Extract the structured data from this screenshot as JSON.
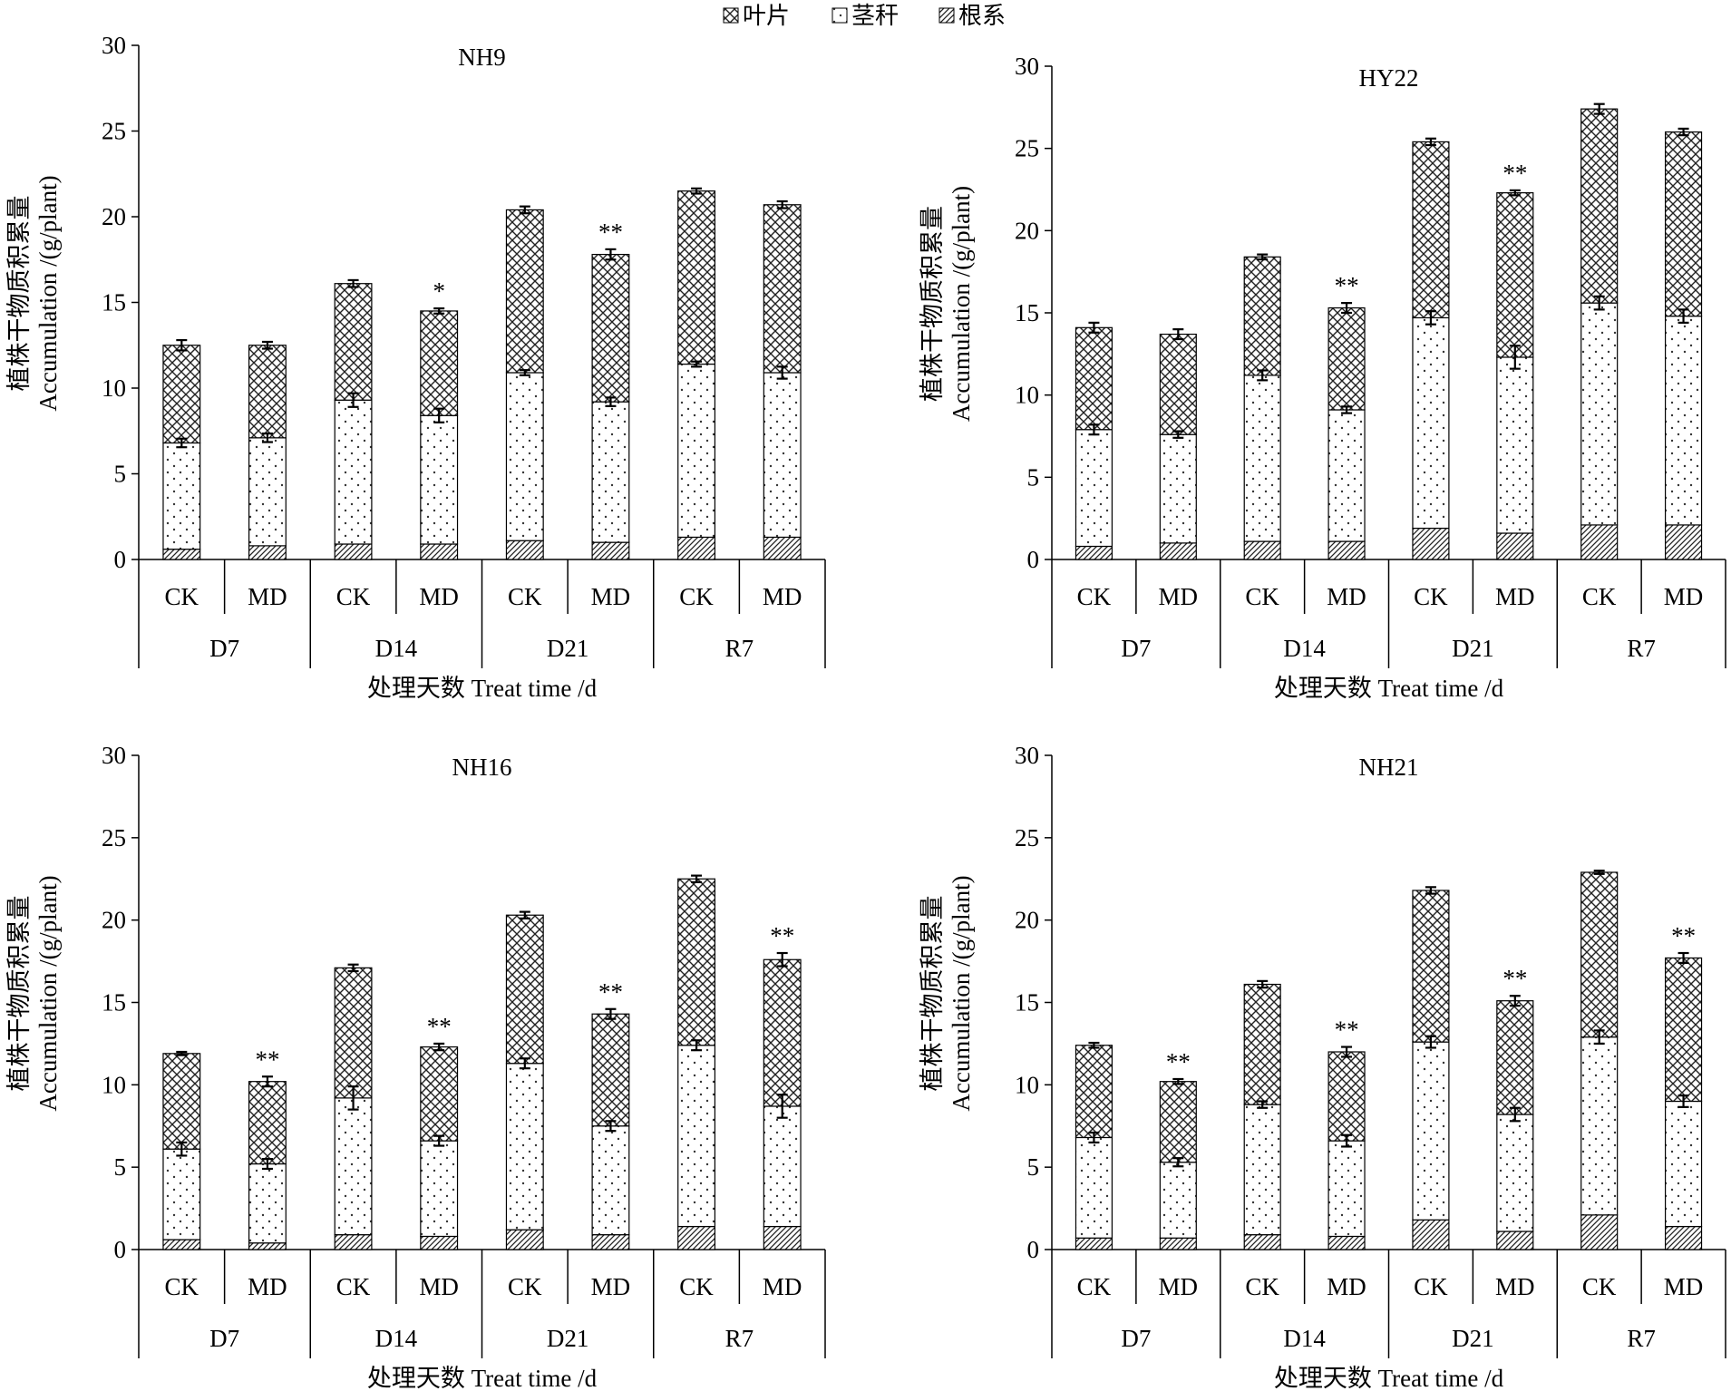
{
  "legend": {
    "items": [
      {
        "key": "leaf",
        "label": "叶片"
      },
      {
        "key": "stem",
        "label": "茎秆"
      },
      {
        "key": "root",
        "label": "根系"
      }
    ]
  },
  "colors": {
    "axis": "#000000",
    "fill": "#ffffff",
    "pattern_ink": "#222222"
  },
  "chart_data": [
    {
      "type": "bar",
      "stacked": true,
      "title": "NH9",
      "ylabel_zh": "植株干物质积累量",
      "ylabel_en": "Accumulation /(g/plant)",
      "xlabel": "处理天数 Treat time /d",
      "ylim": [
        0,
        30
      ],
      "yticks": [
        0,
        5,
        10,
        15,
        20,
        25,
        30
      ],
      "groups": [
        "D7",
        "D14",
        "D21",
        "R7"
      ],
      "treatments": [
        "CK",
        "MD"
      ],
      "bars": [
        {
          "group": "D7",
          "treatment": "CK",
          "root": 0.6,
          "stem": 6.2,
          "leaf": 5.7,
          "err_stem": 0.25,
          "err_total": 0.3,
          "sig": ""
        },
        {
          "group": "D7",
          "treatment": "MD",
          "root": 0.8,
          "stem": 6.3,
          "leaf": 5.4,
          "err_stem": 0.25,
          "err_total": 0.2,
          "sig": ""
        },
        {
          "group": "D14",
          "treatment": "CK",
          "root": 0.9,
          "stem": 8.4,
          "leaf": 6.8,
          "err_stem": 0.4,
          "err_total": 0.2,
          "sig": ""
        },
        {
          "group": "D14",
          "treatment": "MD",
          "root": 0.9,
          "stem": 7.5,
          "leaf": 6.1,
          "err_stem": 0.4,
          "err_total": 0.15,
          "sig": "*"
        },
        {
          "group": "D21",
          "treatment": "CK",
          "root": 1.1,
          "stem": 9.8,
          "leaf": 9.5,
          "err_stem": 0.15,
          "err_total": 0.2,
          "sig": ""
        },
        {
          "group": "D21",
          "treatment": "MD",
          "root": 1.0,
          "stem": 8.2,
          "leaf": 8.6,
          "err_stem": 0.25,
          "err_total": 0.3,
          "sig": "**"
        },
        {
          "group": "R7",
          "treatment": "CK",
          "root": 1.3,
          "stem": 10.1,
          "leaf": 10.1,
          "err_stem": 0.15,
          "err_total": 0.15,
          "sig": ""
        },
        {
          "group": "R7",
          "treatment": "MD",
          "root": 1.3,
          "stem": 9.6,
          "leaf": 9.8,
          "err_stem": 0.35,
          "err_total": 0.2,
          "sig": ""
        }
      ]
    },
    {
      "type": "bar",
      "stacked": true,
      "title": "HY22",
      "ylabel_zh": "植株干物质积累量",
      "ylabel_en": "Accumulation /(g/plant)",
      "xlabel": "处理天数 Treat time /d",
      "ylim": [
        0,
        30
      ],
      "yticks": [
        0,
        5,
        10,
        15,
        20,
        25,
        30
      ],
      "groups": [
        "D7",
        "D14",
        "D21",
        "R7"
      ],
      "treatments": [
        "CK",
        "MD"
      ],
      "bars": [
        {
          "group": "D7",
          "treatment": "CK",
          "root": 0.8,
          "stem": 7.1,
          "leaf": 6.2,
          "err_stem": 0.3,
          "err_total": 0.3,
          "sig": ""
        },
        {
          "group": "D7",
          "treatment": "MD",
          "root": 1.0,
          "stem": 6.6,
          "leaf": 6.1,
          "err_stem": 0.2,
          "err_total": 0.3,
          "sig": ""
        },
        {
          "group": "D14",
          "treatment": "CK",
          "root": 1.1,
          "stem": 10.1,
          "leaf": 7.2,
          "err_stem": 0.3,
          "err_total": 0.15,
          "sig": ""
        },
        {
          "group": "D14",
          "treatment": "MD",
          "root": 1.1,
          "stem": 8.0,
          "leaf": 6.2,
          "err_stem": 0.2,
          "err_total": 0.3,
          "sig": "**"
        },
        {
          "group": "D21",
          "treatment": "CK",
          "root": 1.9,
          "stem": 12.8,
          "leaf": 10.7,
          "err_stem": 0.4,
          "err_total": 0.2,
          "sig": ""
        },
        {
          "group": "D21",
          "treatment": "MD",
          "root": 1.6,
          "stem": 10.7,
          "leaf": 10.0,
          "err_stem": 0.7,
          "err_total": 0.15,
          "sig": "**"
        },
        {
          "group": "R7",
          "treatment": "CK",
          "root": 2.1,
          "stem": 13.5,
          "leaf": 11.8,
          "err_stem": 0.4,
          "err_total": 0.3,
          "sig": ""
        },
        {
          "group": "R7",
          "treatment": "MD",
          "root": 2.1,
          "stem": 12.7,
          "leaf": 11.2,
          "err_stem": 0.4,
          "err_total": 0.2,
          "sig": ""
        }
      ]
    },
    {
      "type": "bar",
      "stacked": true,
      "title": "NH16",
      "ylabel_zh": "植株干物质积累量",
      "ylabel_en": "Accumulation /(g/plant)",
      "xlabel": "处理天数 Treat time /d",
      "ylim": [
        0,
        30
      ],
      "yticks": [
        0,
        5,
        10,
        15,
        20,
        25,
        30
      ],
      "groups": [
        "D7",
        "D14",
        "D21",
        "R7"
      ],
      "treatments": [
        "CK",
        "MD"
      ],
      "bars": [
        {
          "group": "D7",
          "treatment": "CK",
          "root": 0.6,
          "stem": 5.5,
          "leaf": 5.8,
          "err_stem": 0.4,
          "err_total": 0.1,
          "sig": ""
        },
        {
          "group": "D7",
          "treatment": "MD",
          "root": 0.4,
          "stem": 4.8,
          "leaf": 5.0,
          "err_stem": 0.3,
          "err_total": 0.3,
          "sig": "**"
        },
        {
          "group": "D14",
          "treatment": "CK",
          "root": 0.9,
          "stem": 8.3,
          "leaf": 7.9,
          "err_stem": 0.7,
          "err_total": 0.2,
          "sig": ""
        },
        {
          "group": "D14",
          "treatment": "MD",
          "root": 0.8,
          "stem": 5.8,
          "leaf": 5.7,
          "err_stem": 0.3,
          "err_total": 0.2,
          "sig": "**"
        },
        {
          "group": "D21",
          "treatment": "CK",
          "root": 1.2,
          "stem": 10.1,
          "leaf": 9.0,
          "err_stem": 0.3,
          "err_total": 0.2,
          "sig": ""
        },
        {
          "group": "D21",
          "treatment": "MD",
          "root": 0.9,
          "stem": 6.6,
          "leaf": 6.8,
          "err_stem": 0.3,
          "err_total": 0.3,
          "sig": "**"
        },
        {
          "group": "R7",
          "treatment": "CK",
          "root": 1.4,
          "stem": 11.0,
          "leaf": 10.1,
          "err_stem": 0.3,
          "err_total": 0.2,
          "sig": ""
        },
        {
          "group": "R7",
          "treatment": "MD",
          "root": 1.4,
          "stem": 7.3,
          "leaf": 8.9,
          "err_stem": 0.7,
          "err_total": 0.4,
          "sig": "**"
        }
      ]
    },
    {
      "type": "bar",
      "stacked": true,
      "title": "NH21",
      "ylabel_zh": "植株干物质积累量",
      "ylabel_en": "Accumulation /(g/plant)",
      "xlabel": "处理天数 Treat time /d",
      "ylim": [
        0,
        30
      ],
      "yticks": [
        0,
        5,
        10,
        15,
        20,
        25,
        30
      ],
      "groups": [
        "D7",
        "D14",
        "D21",
        "R7"
      ],
      "treatments": [
        "CK",
        "MD"
      ],
      "bars": [
        {
          "group": "D7",
          "treatment": "CK",
          "root": 0.7,
          "stem": 6.1,
          "leaf": 5.6,
          "err_stem": 0.3,
          "err_total": 0.15,
          "sig": ""
        },
        {
          "group": "D7",
          "treatment": "MD",
          "root": 0.7,
          "stem": 4.6,
          "leaf": 4.9,
          "err_stem": 0.25,
          "err_total": 0.15,
          "sig": "**"
        },
        {
          "group": "D14",
          "treatment": "CK",
          "root": 0.9,
          "stem": 7.9,
          "leaf": 7.3,
          "err_stem": 0.2,
          "err_total": 0.2,
          "sig": ""
        },
        {
          "group": "D14",
          "treatment": "MD",
          "root": 0.8,
          "stem": 5.8,
          "leaf": 5.4,
          "err_stem": 0.35,
          "err_total": 0.3,
          "sig": "**"
        },
        {
          "group": "D21",
          "treatment": "CK",
          "root": 1.8,
          "stem": 10.8,
          "leaf": 9.2,
          "err_stem": 0.35,
          "err_total": 0.2,
          "sig": ""
        },
        {
          "group": "D21",
          "treatment": "MD",
          "root": 1.1,
          "stem": 7.1,
          "leaf": 6.9,
          "err_stem": 0.4,
          "err_total": 0.3,
          "sig": "**"
        },
        {
          "group": "R7",
          "treatment": "CK",
          "root": 2.1,
          "stem": 10.8,
          "leaf": 10.0,
          "err_stem": 0.4,
          "err_total": 0.1,
          "sig": ""
        },
        {
          "group": "R7",
          "treatment": "MD",
          "root": 1.4,
          "stem": 7.6,
          "leaf": 8.7,
          "err_stem": 0.35,
          "err_total": 0.3,
          "sig": "**"
        }
      ]
    }
  ]
}
